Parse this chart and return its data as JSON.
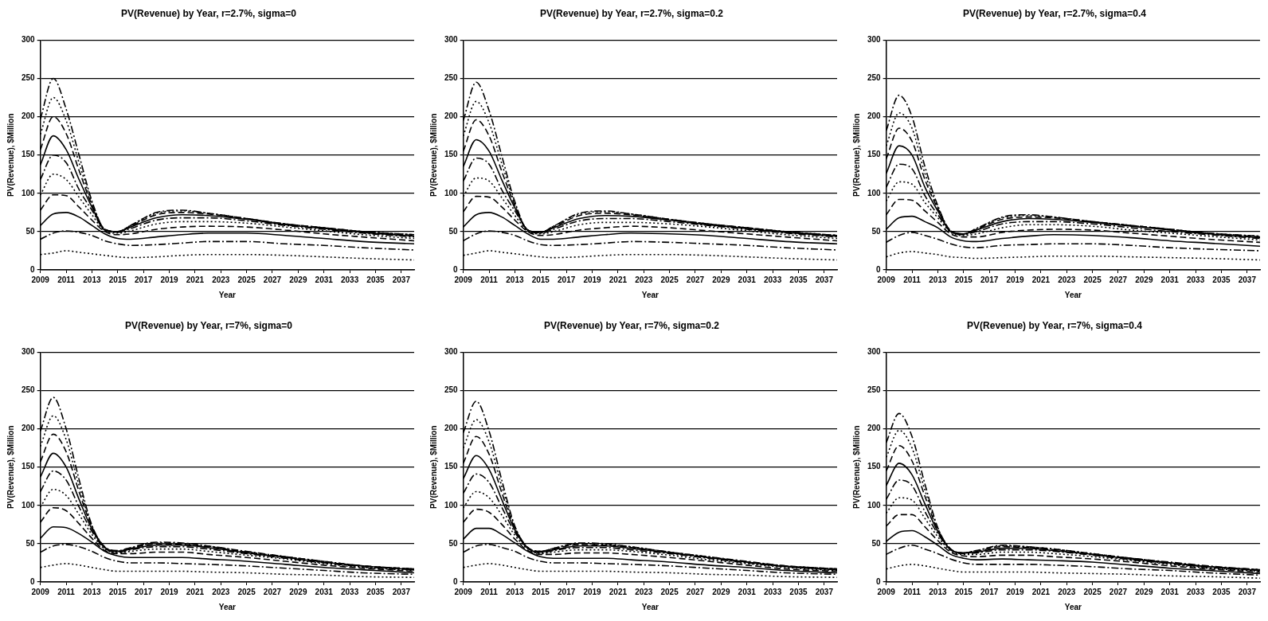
{
  "chart_data": [
    {
      "type": "line",
      "title": "PV(Revenue) by Year, r=2.7%, sigma=0",
      "xlabel": "Year",
      "ylabel": "PV(Revenue), $Million",
      "marker": "none",
      "grid": "y",
      "x": [
        2009,
        2010,
        2011,
        2012,
        2013,
        2014,
        2015,
        2016,
        2018,
        2020,
        2022,
        2025,
        2028,
        2031,
        2034,
        2038
      ],
      "xlim": [
        2009,
        2038
      ],
      "xticks": [
        2009,
        2011,
        2013,
        2015,
        2017,
        2019,
        2021,
        2023,
        2025,
        2027,
        2029,
        2031,
        2033,
        2035,
        2037
      ],
      "ylim": [
        0,
        300
      ],
      "yticks": [
        0,
        50,
        100,
        150,
        200,
        250,
        300
      ],
      "series": [
        {
          "color": "#000000",
          "line_style": "dotted",
          "values": [
            20,
            22,
            25,
            23,
            21,
            19,
            17,
            16,
            17,
            19,
            20,
            20,
            19,
            17,
            15,
            13
          ]
        },
        {
          "color": "#000000",
          "line_style": "dashdot",
          "values": [
            40,
            48,
            51,
            49,
            45,
            38,
            34,
            32,
            33,
            35,
            37,
            37,
            34,
            32,
            29,
            26
          ]
        },
        {
          "color": "#000000",
          "line_style": "solid",
          "values": [
            58,
            73,
            75,
            69,
            58,
            47,
            41,
            40,
            43,
            46,
            48,
            48,
            45,
            41,
            37,
            34
          ]
        },
        {
          "color": "#000000",
          "line_style": "dashed",
          "values": [
            78,
            98,
            97,
            82,
            65,
            50,
            46,
            47,
            53,
            56,
            57,
            56,
            52,
            47,
            43,
            38
          ]
        },
        {
          "color": "#000000",
          "line_style": "dotted",
          "values": [
            98,
            125,
            118,
            95,
            72,
            51,
            48,
            51,
            60,
            63,
            63,
            61,
            56,
            51,
            46,
            41
          ]
        },
        {
          "color": "#000000",
          "line_style": "dashdot",
          "values": [
            118,
            150,
            140,
            105,
            78,
            52,
            49,
            54,
            65,
            68,
            68,
            64,
            58,
            53,
            48,
            43
          ]
        },
        {
          "color": "#000000",
          "line_style": "solid",
          "values": [
            137,
            175,
            157,
            118,
            82,
            52,
            50,
            56,
            68,
            72,
            71,
            66,
            59,
            54,
            49,
            44
          ]
        },
        {
          "color": "#000000",
          "line_style": "dashed",
          "values": [
            157,
            200,
            178,
            130,
            85,
            53,
            50,
            57,
            72,
            75,
            73,
            67,
            60,
            55,
            50,
            45
          ]
        },
        {
          "color": "#000000",
          "line_style": "dotted",
          "values": [
            177,
            225,
            195,
            140,
            88,
            53,
            50,
            58,
            74,
            77,
            74,
            67,
            60,
            55,
            50,
            46
          ]
        },
        {
          "color": "#000000",
          "line_style": "dashdot",
          "values": [
            197,
            250,
            210,
            150,
            90,
            53,
            50,
            58,
            75,
            78,
            74,
            67,
            60,
            55,
            50,
            46
          ]
        }
      ]
    },
    {
      "type": "line",
      "title": "PV(Revenue) by Year, r=2.7%, sigma=0.2",
      "xlabel": "Year",
      "ylabel": "PV(Revenue), $Million",
      "marker": "none",
      "grid": "y",
      "x": [
        2009,
        2010,
        2011,
        2012,
        2013,
        2014,
        2015,
        2016,
        2018,
        2020,
        2022,
        2025,
        2028,
        2031,
        2034,
        2038
      ],
      "xlim": [
        2009,
        2038
      ],
      "xticks": [
        2009,
        2011,
        2013,
        2015,
        2017,
        2019,
        2021,
        2023,
        2025,
        2027,
        2029,
        2031,
        2033,
        2035,
        2037
      ],
      "ylim": [
        0,
        300
      ],
      "yticks": [
        0,
        50,
        100,
        150,
        200,
        250,
        300
      ],
      "series": [
        {
          "color": "#000000",
          "line_style": "dotted",
          "values": [
            19,
            22,
            25,
            23,
            21,
            19,
            17,
            16,
            17,
            19,
            20,
            20,
            19,
            17,
            15,
            13
          ]
        },
        {
          "color": "#000000",
          "line_style": "dashdot",
          "values": [
            38,
            47,
            51,
            49,
            45,
            38,
            33,
            32,
            33,
            35,
            37,
            36,
            34,
            32,
            29,
            26
          ]
        },
        {
          "color": "#000000",
          "line_style": "solid",
          "values": [
            56,
            72,
            75,
            69,
            58,
            47,
            40,
            40,
            43,
            46,
            48,
            47,
            45,
            41,
            37,
            34
          ]
        },
        {
          "color": "#000000",
          "line_style": "dashed",
          "values": [
            76,
            96,
            95,
            82,
            65,
            50,
            45,
            46,
            52,
            55,
            57,
            55,
            51,
            47,
            43,
            38
          ]
        },
        {
          "color": "#000000",
          "line_style": "dotted",
          "values": [
            96,
            120,
            116,
            94,
            71,
            51,
            47,
            50,
            59,
            62,
            62,
            60,
            56,
            51,
            46,
            41
          ]
        },
        {
          "color": "#000000",
          "line_style": "dashdot",
          "values": [
            116,
            146,
            138,
            104,
            77,
            52,
            48,
            53,
            64,
            67,
            67,
            63,
            58,
            53,
            48,
            43
          ]
        },
        {
          "color": "#000000",
          "line_style": "solid",
          "values": [
            135,
            170,
            155,
            117,
            81,
            52,
            49,
            55,
            67,
            71,
            70,
            65,
            59,
            54,
            49,
            44
          ]
        },
        {
          "color": "#000000",
          "line_style": "dashed",
          "values": [
            155,
            196,
            175,
            128,
            84,
            52,
            49,
            56,
            71,
            74,
            72,
            66,
            60,
            55,
            50,
            45
          ]
        },
        {
          "color": "#000000",
          "line_style": "dotted",
          "values": [
            175,
            220,
            192,
            138,
            87,
            52,
            49,
            57,
            73,
            76,
            73,
            66,
            60,
            55,
            50,
            45
          ]
        },
        {
          "color": "#000000",
          "line_style": "dashdot",
          "values": [
            195,
            245,
            208,
            148,
            89,
            52,
            49,
            57,
            74,
            77,
            73,
            66,
            60,
            55,
            50,
            45
          ]
        }
      ]
    },
    {
      "type": "line",
      "title": "PV(Revenue) by Year, r=2.7%, sigma=0.4",
      "xlabel": "Year",
      "ylabel": "PV(Revenue), $Million",
      "marker": "none",
      "grid": "y",
      "x": [
        2009,
        2010,
        2011,
        2012,
        2013,
        2014,
        2015,
        2016,
        2018,
        2020,
        2022,
        2025,
        2028,
        2031,
        2034,
        2038
      ],
      "xlim": [
        2009,
        2038
      ],
      "xticks": [
        2009,
        2011,
        2013,
        2015,
        2017,
        2019,
        2021,
        2023,
        2025,
        2027,
        2029,
        2031,
        2033,
        2035,
        2037
      ],
      "ylim": [
        0,
        300
      ],
      "yticks": [
        0,
        50,
        100,
        150,
        200,
        250,
        300
      ],
      "series": [
        {
          "color": "#000000",
          "line_style": "dotted",
          "values": [
            17,
            22,
            24,
            22,
            20,
            17,
            16,
            15,
            16,
            17,
            18,
            18,
            17,
            16,
            15,
            13
          ]
        },
        {
          "color": "#000000",
          "line_style": "dashdot",
          "values": [
            36,
            45,
            49,
            45,
            40,
            34,
            30,
            29,
            32,
            33,
            34,
            34,
            32,
            29,
            27,
            25
          ]
        },
        {
          "color": "#000000",
          "line_style": "solid",
          "values": [
            53,
            68,
            70,
            63,
            55,
            43,
            38,
            37,
            41,
            44,
            46,
            45,
            42,
            38,
            35,
            31
          ]
        },
        {
          "color": "#000000",
          "line_style": "dashed",
          "values": [
            72,
            92,
            91,
            77,
            62,
            47,
            43,
            43,
            49,
            52,
            53,
            52,
            48,
            44,
            40,
            36
          ]
        },
        {
          "color": "#000000",
          "line_style": "dotted",
          "values": [
            90,
            115,
            112,
            88,
            68,
            49,
            45,
            47,
            55,
            59,
            59,
            57,
            52,
            48,
            44,
            39
          ]
        },
        {
          "color": "#000000",
          "line_style": "dashdot",
          "values": [
            108,
            138,
            132,
            97,
            72,
            50,
            46,
            50,
            60,
            63,
            63,
            60,
            55,
            50,
            46,
            41
          ]
        },
        {
          "color": "#000000",
          "line_style": "solid",
          "values": [
            126,
            162,
            150,
            108,
            77,
            50,
            47,
            52,
            63,
            67,
            66,
            62,
            57,
            52,
            47,
            42
          ]
        },
        {
          "color": "#000000",
          "line_style": "dashed",
          "values": [
            145,
            185,
            168,
            118,
            80,
            51,
            47,
            53,
            66,
            69,
            68,
            63,
            58,
            53,
            48,
            43
          ]
        },
        {
          "color": "#000000",
          "line_style": "dotted",
          "values": [
            162,
            205,
            185,
            126,
            82,
            51,
            47,
            54,
            68,
            71,
            69,
            63,
            58,
            53,
            48,
            44
          ]
        },
        {
          "color": "#000000",
          "line_style": "dashdot",
          "values": [
            182,
            228,
            200,
            135,
            84,
            51,
            47,
            54,
            69,
            72,
            69,
            63,
            58,
            53,
            48,
            44
          ]
        }
      ]
    },
    {
      "type": "line",
      "title": "PV(Revenue) by Year, r=7%, sigma=0",
      "xlabel": "Year",
      "ylabel": "PV(Revenue), $Million",
      "marker": "none",
      "grid": "y",
      "x": [
        2009,
        2010,
        2011,
        2012,
        2013,
        2014,
        2015,
        2016,
        2018,
        2020,
        2022,
        2025,
        2028,
        2031,
        2034,
        2038
      ],
      "xlim": [
        2009,
        2038
      ],
      "xticks": [
        2009,
        2011,
        2013,
        2015,
        2017,
        2019,
        2021,
        2023,
        2025,
        2027,
        2029,
        2031,
        2033,
        2035,
        2037
      ],
      "ylim": [
        0,
        300
      ],
      "yticks": [
        0,
        50,
        100,
        150,
        200,
        250,
        300
      ],
      "series": [
        {
          "color": "#000000",
          "line_style": "dotted",
          "values": [
            19,
            22,
            24,
            22,
            19,
            16,
            14,
            14,
            14,
            14,
            13,
            12,
            10,
            9,
            7,
            6
          ]
        },
        {
          "color": "#000000",
          "line_style": "dashdot",
          "values": [
            39,
            47,
            49,
            46,
            40,
            32,
            27,
            25,
            25,
            24,
            23,
            21,
            18,
            15,
            12,
            10
          ]
        },
        {
          "color": "#000000",
          "line_style": "solid",
          "values": [
            57,
            72,
            71,
            63,
            52,
            40,
            34,
            32,
            32,
            32,
            30,
            27,
            23,
            19,
            16,
            12
          ]
        },
        {
          "color": "#000000",
          "line_style": "dashed",
          "values": [
            78,
            97,
            93,
            76,
            57,
            41,
            37,
            37,
            39,
            39,
            36,
            32,
            27,
            22,
            18,
            14
          ]
        },
        {
          "color": "#000000",
          "line_style": "dotted",
          "values": [
            98,
            121,
            113,
            88,
            62,
            43,
            38,
            40,
            43,
            43,
            40,
            35,
            30,
            24,
            19,
            15
          ]
        },
        {
          "color": "#000000",
          "line_style": "dashdot",
          "values": [
            118,
            145,
            133,
            98,
            66,
            44,
            39,
            42,
            46,
            46,
            43,
            37,
            31,
            25,
            20,
            16
          ]
        },
        {
          "color": "#000000",
          "line_style": "solid",
          "values": [
            137,
            168,
            150,
            108,
            69,
            45,
            40,
            43,
            48,
            48,
            45,
            38,
            32,
            26,
            21,
            16
          ]
        },
        {
          "color": "#000000",
          "line_style": "dashed",
          "values": [
            157,
            193,
            170,
            118,
            72,
            45,
            40,
            44,
            50,
            49,
            46,
            39,
            33,
            26,
            21,
            17
          ]
        },
        {
          "color": "#000000",
          "line_style": "dotted",
          "values": [
            177,
            217,
            186,
            126,
            73,
            45,
            40,
            44,
            51,
            50,
            47,
            39,
            33,
            27,
            21,
            17
          ]
        },
        {
          "color": "#000000",
          "line_style": "dashdot",
          "values": [
            197,
            241,
            200,
            134,
            74,
            46,
            41,
            45,
            52,
            51,
            47,
            40,
            33,
            27,
            21,
            17
          ]
        }
      ]
    },
    {
      "type": "line",
      "title": "PV(Revenue) by Year, r=7%, sigma=0.2",
      "xlabel": "Year",
      "ylabel": "PV(Revenue), $Million",
      "marker": "none",
      "grid": "y",
      "x": [
        2009,
        2010,
        2011,
        2012,
        2013,
        2014,
        2015,
        2016,
        2018,
        2020,
        2022,
        2025,
        2028,
        2031,
        2034,
        2038
      ],
      "xlim": [
        2009,
        2038
      ],
      "xticks": [
        2009,
        2011,
        2013,
        2015,
        2017,
        2019,
        2021,
        2023,
        2025,
        2027,
        2029,
        2031,
        2033,
        2035,
        2037
      ],
      "ylim": [
        0,
        300
      ],
      "yticks": [
        0,
        50,
        100,
        150,
        200,
        250,
        300
      ],
      "series": [
        {
          "color": "#000000",
          "line_style": "dotted",
          "values": [
            19,
            22,
            24,
            22,
            19,
            16,
            14,
            14,
            14,
            14,
            13,
            12,
            10,
            9,
            7,
            6
          ]
        },
        {
          "color": "#000000",
          "line_style": "dashdot",
          "values": [
            39,
            47,
            49,
            45,
            40,
            32,
            27,
            25,
            25,
            24,
            23,
            21,
            18,
            15,
            12,
            10
          ]
        },
        {
          "color": "#000000",
          "line_style": "solid",
          "values": [
            56,
            70,
            70,
            62,
            51,
            40,
            33,
            31,
            31,
            31,
            29,
            26,
            22,
            19,
            15,
            12
          ]
        },
        {
          "color": "#000000",
          "line_style": "dashed",
          "values": [
            78,
            95,
            91,
            75,
            56,
            41,
            36,
            36,
            38,
            38,
            36,
            32,
            27,
            22,
            17,
            14
          ]
        },
        {
          "color": "#000000",
          "line_style": "dotted",
          "values": [
            97,
            118,
            110,
            87,
            61,
            43,
            37,
            39,
            42,
            42,
            40,
            35,
            29,
            24,
            19,
            15
          ]
        },
        {
          "color": "#000000",
          "line_style": "dashdot",
          "values": [
            116,
            141,
            130,
            97,
            65,
            44,
            38,
            41,
            45,
            45,
            42,
            37,
            31,
            25,
            20,
            16
          ]
        },
        {
          "color": "#000000",
          "line_style": "solid",
          "values": [
            135,
            165,
            147,
            107,
            68,
            44,
            39,
            42,
            47,
            47,
            44,
            38,
            32,
            26,
            20,
            16
          ]
        },
        {
          "color": "#000000",
          "line_style": "dashed",
          "values": [
            155,
            190,
            167,
            116,
            70,
            45,
            40,
            43,
            49,
            48,
            45,
            39,
            32,
            26,
            21,
            17
          ]
        },
        {
          "color": "#000000",
          "line_style": "dotted",
          "values": [
            175,
            212,
            183,
            124,
            72,
            45,
            40,
            44,
            50,
            49,
            46,
            39,
            33,
            26,
            21,
            17
          ]
        },
        {
          "color": "#000000",
          "line_style": "dashdot",
          "values": [
            195,
            236,
            197,
            132,
            73,
            45,
            40,
            44,
            51,
            50,
            46,
            39,
            33,
            27,
            21,
            17
          ]
        }
      ]
    },
    {
      "type": "line",
      "title": "PV(Revenue) by Year, r=7%, sigma=0.4",
      "xlabel": "Year",
      "ylabel": "PV(Revenue), $Million",
      "marker": "none",
      "grid": "y",
      "x": [
        2009,
        2010,
        2011,
        2012,
        2013,
        2014,
        2015,
        2016,
        2018,
        2020,
        2022,
        2025,
        2028,
        2031,
        2034,
        2038
      ],
      "xlim": [
        2009,
        2038
      ],
      "xticks": [
        2009,
        2011,
        2013,
        2015,
        2017,
        2019,
        2021,
        2023,
        2025,
        2027,
        2029,
        2031,
        2033,
        2035,
        2037
      ],
      "ylim": [
        0,
        300
      ],
      "yticks": [
        0,
        50,
        100,
        150,
        200,
        250,
        300
      ],
      "series": [
        {
          "color": "#000000",
          "line_style": "dotted",
          "values": [
            17,
            21,
            23,
            21,
            18,
            15,
            13,
            13,
            13,
            13,
            12,
            11,
            10,
            8,
            7,
            5
          ]
        },
        {
          "color": "#000000",
          "line_style": "dashdot",
          "values": [
            36,
            44,
            48,
            43,
            37,
            30,
            25,
            23,
            23,
            23,
            22,
            20,
            17,
            15,
            12,
            9
          ]
        },
        {
          "color": "#000000",
          "line_style": "solid",
          "values": [
            53,
            65,
            67,
            59,
            48,
            36,
            31,
            29,
            30,
            29,
            28,
            26,
            22,
            18,
            15,
            11
          ]
        },
        {
          "color": "#000000",
          "line_style": "dashed",
          "values": [
            73,
            88,
            88,
            72,
            54,
            39,
            34,
            33,
            35,
            35,
            33,
            30,
            26,
            21,
            17,
            13
          ]
        },
        {
          "color": "#000000",
          "line_style": "dotted",
          "values": [
            90,
            110,
            107,
            83,
            59,
            41,
            36,
            36,
            39,
            39,
            37,
            33,
            28,
            23,
            18,
            14
          ]
        },
        {
          "color": "#000000",
          "line_style": "dashdot",
          "values": [
            108,
            133,
            126,
            92,
            63,
            42,
            37,
            38,
            42,
            42,
            40,
            35,
            29,
            24,
            19,
            15
          ]
        },
        {
          "color": "#000000",
          "line_style": "solid",
          "values": [
            126,
            155,
            140,
            102,
            66,
            42,
            38,
            39,
            44,
            44,
            41,
            36,
            30,
            25,
            20,
            15
          ]
        },
        {
          "color": "#000000",
          "line_style": "dashed",
          "values": [
            145,
            178,
            158,
            112,
            68,
            43,
            38,
            40,
            46,
            45,
            42,
            36,
            31,
            25,
            20,
            16
          ]
        },
        {
          "color": "#000000",
          "line_style": "dotted",
          "values": [
            163,
            198,
            175,
            120,
            70,
            43,
            38,
            41,
            47,
            46,
            43,
            37,
            31,
            25,
            20,
            16
          ]
        },
        {
          "color": "#000000",
          "line_style": "dashdot",
          "values": [
            182,
            220,
            190,
            128,
            71,
            43,
            38,
            41,
            48,
            46,
            43,
            37,
            31,
            26,
            21,
            16
          ]
        }
      ]
    }
  ]
}
